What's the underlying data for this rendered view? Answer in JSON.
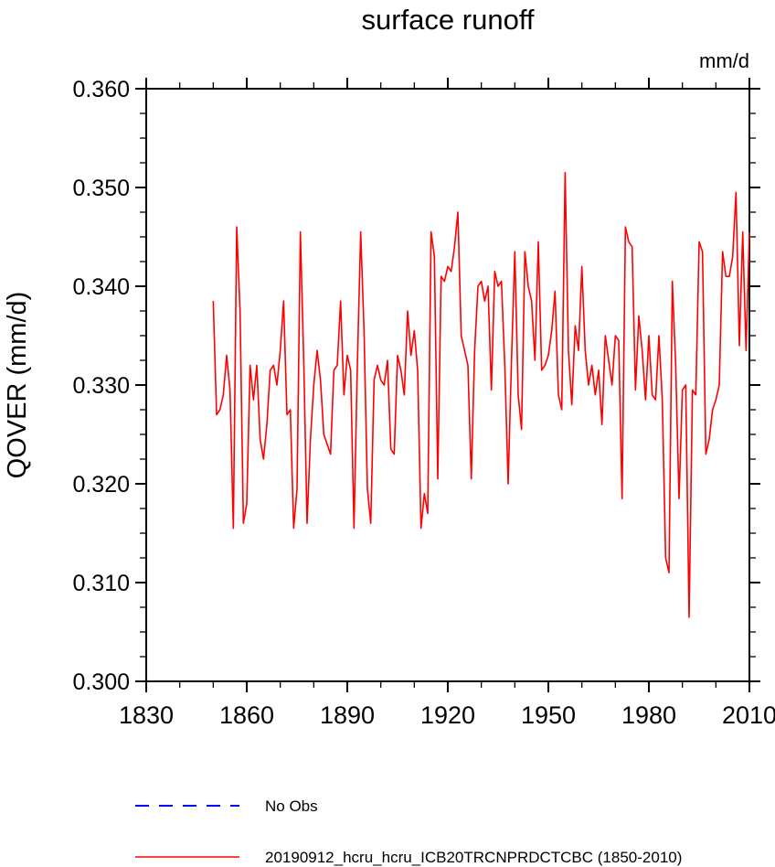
{
  "page": {
    "title": "surface runoff"
  },
  "colors": {
    "axis": "#000000",
    "background": "#ffffff",
    "series_red": "#ff0000",
    "no_obs_blue": "#0000ff"
  },
  "chart_data": {
    "type": "line",
    "title": "surface runoff",
    "units_label": "mm/d",
    "ylabel": "QOVER  (mm/d)",
    "xlabel": "",
    "xlim": [
      1830,
      2010
    ],
    "ylim": [
      0.3,
      0.36
    ],
    "grid": false,
    "legend_position": "below",
    "xticks": {
      "major": [
        1830,
        1860,
        1890,
        1920,
        1950,
        1980,
        2010
      ],
      "labels": [
        "1830",
        "1860",
        "1890",
        "1920",
        "1950",
        "1980",
        "2010"
      ],
      "major_step": 30,
      "minor_step": 10
    },
    "yticks": {
      "major": [
        0.3,
        0.31,
        0.32,
        0.33,
        0.34,
        0.35,
        0.36
      ],
      "labels": [
        "0.300",
        "0.310",
        "0.320",
        "0.330",
        "0.340",
        "0.350",
        "0.360"
      ],
      "major_step": 0.01,
      "minor_step": 0.0025
    },
    "series": [
      {
        "name": "20190912_hcru_hcru_ICB20TRCNPRDCTCBC (1850-2010)",
        "color": "#ff0000",
        "years": [
          1850,
          1851,
          1852,
          1853,
          1854,
          1855,
          1856,
          1857,
          1858,
          1859,
          1860,
          1861,
          1862,
          1863,
          1864,
          1865,
          1866,
          1867,
          1868,
          1869,
          1870,
          1871,
          1872,
          1873,
          1874,
          1875,
          1876,
          1877,
          1878,
          1879,
          1880,
          1881,
          1882,
          1883,
          1884,
          1885,
          1886,
          1887,
          1888,
          1889,
          1890,
          1891,
          1892,
          1893,
          1894,
          1895,
          1896,
          1897,
          1898,
          1899,
          1900,
          1901,
          1902,
          1903,
          1904,
          1905,
          1906,
          1907,
          1908,
          1909,
          1910,
          1911,
          1912,
          1913,
          1914,
          1915,
          1916,
          1917,
          1918,
          1919,
          1920,
          1921,
          1922,
          1923,
          1924,
          1925,
          1926,
          1927,
          1928,
          1929,
          1930,
          1931,
          1932,
          1933,
          1934,
          1935,
          1936,
          1937,
          1938,
          1939,
          1940,
          1941,
          1942,
          1943,
          1944,
          1945,
          1946,
          1947,
          1948,
          1949,
          1950,
          1951,
          1952,
          1953,
          1954,
          1955,
          1956,
          1957,
          1958,
          1959,
          1960,
          1961,
          1962,
          1963,
          1964,
          1965,
          1966,
          1967,
          1968,
          1969,
          1970,
          1971,
          1972,
          1973,
          1974,
          1975,
          1976,
          1977,
          1978,
          1979,
          1980,
          1981,
          1982,
          1983,
          1984,
          1985,
          1986,
          1987,
          1988,
          1989,
          1990,
          1991,
          1992,
          1993,
          1994,
          1995,
          1996,
          1997,
          1998,
          1999,
          2000,
          2001,
          2002,
          2003,
          2004,
          2005,
          2006,
          2007,
          2008,
          2009,
          2010
        ],
        "values": [
          0.3385,
          0.327,
          0.3275,
          0.329,
          0.333,
          0.3295,
          0.3155,
          0.346,
          0.3375,
          0.316,
          0.318,
          0.332,
          0.3285,
          0.332,
          0.3245,
          0.3225,
          0.326,
          0.3315,
          0.332,
          0.33,
          0.3335,
          0.3385,
          0.327,
          0.3275,
          0.3155,
          0.3195,
          0.3455,
          0.3325,
          0.316,
          0.3245,
          0.33,
          0.3335,
          0.3305,
          0.325,
          0.324,
          0.323,
          0.3315,
          0.332,
          0.3385,
          0.329,
          0.333,
          0.3315,
          0.3155,
          0.332,
          0.3455,
          0.3355,
          0.3195,
          0.316,
          0.3305,
          0.332,
          0.3305,
          0.33,
          0.3325,
          0.3235,
          0.323,
          0.333,
          0.3315,
          0.329,
          0.3375,
          0.333,
          0.3355,
          0.3315,
          0.3155,
          0.319,
          0.317,
          0.3455,
          0.343,
          0.3205,
          0.341,
          0.3405,
          0.342,
          0.3415,
          0.344,
          0.3475,
          0.335,
          0.3335,
          0.332,
          0.3205,
          0.3335,
          0.34,
          0.3405,
          0.3385,
          0.34,
          0.3295,
          0.3415,
          0.34,
          0.3405,
          0.332,
          0.32,
          0.3325,
          0.3435,
          0.329,
          0.3255,
          0.3435,
          0.34,
          0.3385,
          0.3325,
          0.3445,
          0.3315,
          0.332,
          0.333,
          0.3355,
          0.3395,
          0.329,
          0.3275,
          0.3515,
          0.3335,
          0.328,
          0.336,
          0.3335,
          0.342,
          0.3335,
          0.33,
          0.332,
          0.329,
          0.3315,
          0.326,
          0.335,
          0.3325,
          0.33,
          0.335,
          0.3345,
          0.3185,
          0.346,
          0.3445,
          0.344,
          0.3295,
          0.337,
          0.3335,
          0.3285,
          0.335,
          0.329,
          0.3285,
          0.335,
          0.3285,
          0.3125,
          0.311,
          0.3405,
          0.332,
          0.3185,
          0.3295,
          0.33,
          0.3065,
          0.3295,
          0.329,
          0.3445,
          0.3435,
          0.323,
          0.3245,
          0.3275,
          0.3285,
          0.33,
          0.3435,
          0.341,
          0.341,
          0.343,
          0.3495,
          0.334,
          0.3455,
          0.3335,
          0.3455
        ]
      }
    ],
    "legend": [
      {
        "label": "No Obs",
        "color": "#0000ff",
        "dash": true
      },
      {
        "label": "20190912_hcru_hcru_ICB20TRCNPRDCTCBC (1850-2010)",
        "color": "#ff0000",
        "dash": false
      }
    ]
  }
}
